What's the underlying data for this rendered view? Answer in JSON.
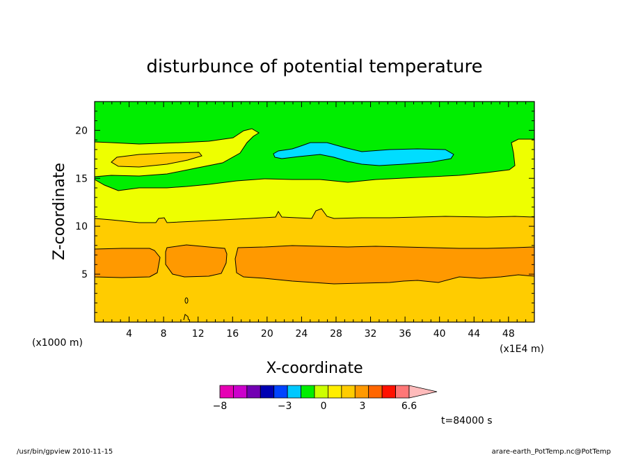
{
  "chart_data": {
    "type": "heatmap",
    "title": "disturbunce of potential temperature",
    "xlabel": "X-coordinate",
    "ylabel": "Z-coordinate",
    "x_unit": "(x1E4 m)",
    "y_unit": "(x1000 m)",
    "xlim": [
      0,
      51
    ],
    "ylim": [
      0,
      23
    ],
    "x_ticks": [
      4,
      8,
      12,
      16,
      20,
      24,
      28,
      32,
      36,
      40,
      44,
      48
    ],
    "y_ticks": [
      5,
      10,
      15,
      20
    ],
    "colorbar": {
      "colors": [
        "#e600b4",
        "#cc00cc",
        "#7300b3",
        "#0000b3",
        "#0044ff",
        "#00c8ff",
        "#00ee00",
        "#ccff00",
        "#ffee00",
        "#ffcc00",
        "#ff9900",
        "#ff6600",
        "#ff1100",
        "#ff7777",
        "#ffbbbb"
      ],
      "labels": [
        {
          "text": "−8",
          "value": -8
        },
        {
          "text": "−3",
          "value": -3
        },
        {
          "text": "0",
          "value": 0
        },
        {
          "text": "3",
          "value": 3
        },
        {
          "text": "6.6",
          "value": 6.6
        }
      ]
    },
    "regions": [
      {
        "level": "green",
        "color": "#00ee00",
        "description": "upper layer z > ~15"
      },
      {
        "level": "cyan",
        "color": "#00ddff",
        "description": "negative anomaly near x 21-41, z 16.5-18.5"
      },
      {
        "level": "yellow-green",
        "color": "#eeff00",
        "description": "layer z ~11-15"
      },
      {
        "level": "yellow",
        "color": "#ffcc00",
        "description": "lower layer z < ~11"
      },
      {
        "level": "orange",
        "color": "#ff9900",
        "description": "band z ~4-7.7"
      }
    ],
    "time_label": "t=84000 s"
  },
  "footer": {
    "left": "/usr/bin/gpview   2010-11-15",
    "right": "arare-earth_PotTemp.nc@PotTemp"
  }
}
